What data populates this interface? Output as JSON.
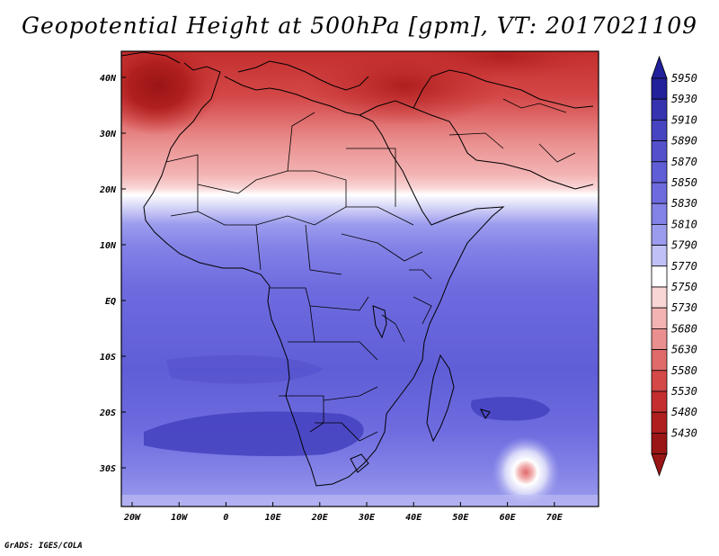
{
  "title": "Geopotential Height at 500hPa [gpm], VT: 2017021109",
  "credit": "GrADS: IGES/COLA",
  "x_ticks": [
    "20W",
    "10W",
    "0",
    "10E",
    "20E",
    "30E",
    "40E",
    "50E",
    "60E",
    "70E"
  ],
  "y_ticks": [
    "40N",
    "30N",
    "20N",
    "10N",
    "EQ",
    "10S",
    "20S",
    "30S"
  ],
  "colorbar": {
    "levels": [
      "5950",
      "5930",
      "5910",
      "5890",
      "5870",
      "5850",
      "5830",
      "5810",
      "5790",
      "5770",
      "5750",
      "5730",
      "5680",
      "5630",
      "5580",
      "5530",
      "5480",
      "5430"
    ],
    "colors": [
      "#22209a",
      "#3533b0",
      "#4744c1",
      "#5450cc",
      "#605ed6",
      "#6e6bdf",
      "#8382e6",
      "#9c9cee",
      "#bfc0f5",
      "#ffffff",
      "#f9d6d6",
      "#f2b3b3",
      "#ea8f8f",
      "#e06a6a",
      "#d44848",
      "#c42e2e",
      "#b01f1f",
      "#9a1515"
    ],
    "top_arrow_color": "#22209a",
    "bottom_arrow_color": "#9a1515"
  }
}
